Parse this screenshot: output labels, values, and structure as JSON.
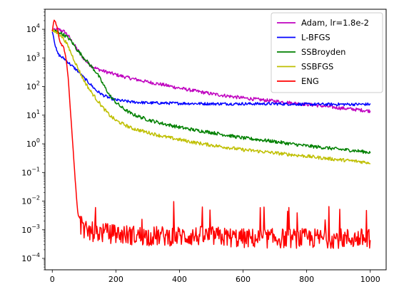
{
  "chart_data": {
    "type": "line",
    "title": "",
    "xlabel": "",
    "ylabel": "",
    "xlim": [
      -23,
      1050
    ],
    "ylim": [
      4e-05,
      50000
    ],
    "yscale": "log",
    "grid": false,
    "legend_position": "top-right",
    "x_ticks": [
      0,
      200,
      400,
      600,
      800,
      1000
    ],
    "x_tick_labels": [
      "0",
      "200",
      "400",
      "600",
      "800",
      "1000"
    ],
    "y_ticks": [
      0.0001,
      0.001,
      0.01,
      0.1,
      1,
      10,
      100,
      1000,
      10000
    ],
    "y_tick_labels": [
      {
        "base": "10",
        "exp": "−4"
      },
      {
        "base": "10",
        "exp": "−3"
      },
      {
        "base": "10",
        "exp": "−2"
      },
      {
        "base": "10",
        "exp": "−1"
      },
      {
        "base": "10",
        "exp": "0"
      },
      {
        "base": "10",
        "exp": "1"
      },
      {
        "base": "10",
        "exp": "2"
      },
      {
        "base": "10",
        "exp": "3"
      },
      {
        "base": "10",
        "exp": "4"
      }
    ],
    "series": [
      {
        "name": "Adam, lr=1.8e-2",
        "color": "#bf00bf",
        "x": [
          0,
          10,
          20,
          30,
          40,
          50,
          60,
          80,
          100,
          120,
          140,
          160,
          200,
          250,
          300,
          350,
          400,
          450,
          500,
          550,
          600,
          650,
          700,
          750,
          800,
          850,
          900,
          950,
          1000
        ],
        "y": [
          9000,
          9500,
          10000,
          9000,
          8000,
          6000,
          4000,
          1900,
          900,
          550,
          420,
          350,
          260,
          190,
          145,
          115,
          88,
          70,
          56,
          47,
          40,
          35,
          31,
          27,
          24,
          21,
          18,
          16,
          14
        ]
      },
      {
        "name": "L-BFGS",
        "color": "#0000ff",
        "x": [
          0,
          5,
          10,
          15,
          20,
          30,
          40,
          50,
          60,
          80,
          100,
          120,
          140,
          160,
          180,
          200,
          250,
          300,
          400,
          500,
          600,
          700,
          800,
          900,
          1000
        ],
        "y": [
          9000,
          5000,
          2500,
          1600,
          1300,
          1050,
          900,
          700,
          550,
          350,
          200,
          120,
          70,
          50,
          40,
          34,
          29,
          27,
          26,
          25,
          25,
          25,
          24,
          24,
          24
        ]
      },
      {
        "name": "SSBroyden",
        "color": "#008000",
        "x": [
          0,
          10,
          20,
          30,
          40,
          50,
          60,
          80,
          100,
          120,
          140,
          160,
          180,
          200,
          220,
          250,
          300,
          350,
          400,
          450,
          500,
          550,
          600,
          650,
          700,
          750,
          800,
          850,
          900,
          950,
          1000
        ],
        "y": [
          9000,
          8500,
          8000,
          7000,
          6000,
          5000,
          3800,
          1800,
          1000,
          550,
          300,
          120,
          50,
          28,
          18,
          11,
          7,
          5,
          3.8,
          3,
          2.5,
          2,
          1.6,
          1.4,
          1.2,
          1.0,
          0.85,
          0.75,
          0.65,
          0.58,
          0.5
        ]
      },
      {
        "name": "SSBFGS",
        "color": "#bfbf00",
        "x": [
          0,
          10,
          20,
          30,
          40,
          50,
          60,
          70,
          80,
          100,
          120,
          140,
          160,
          180,
          200,
          250,
          300,
          350,
          400,
          450,
          500,
          550,
          600,
          650,
          700,
          750,
          800,
          850,
          900,
          950,
          1000
        ],
        "y": [
          9000,
          8000,
          7000,
          5500,
          4000,
          2500,
          1400,
          800,
          450,
          160,
          70,
          35,
          18,
          10,
          6.5,
          3.5,
          2.5,
          1.8,
          1.4,
          1.1,
          0.9,
          0.75,
          0.62,
          0.55,
          0.48,
          0.42,
          0.37,
          0.32,
          0.28,
          0.25,
          0.22
        ]
      },
      {
        "name": "ENG",
        "color": "#ff0000",
        "x": [
          0,
          3,
          6,
          10,
          15,
          20,
          25,
          30,
          35,
          40,
          45,
          50,
          55,
          60,
          65,
          70,
          75,
          80,
          90,
          100,
          150,
          200,
          300,
          400,
          500,
          600,
          700,
          800,
          900,
          1000
        ],
        "y": [
          8000,
          16000,
          22000,
          18000,
          12000,
          6000,
          3500,
          2800,
          2500,
          1500,
          700,
          200,
          30,
          5,
          0.8,
          0.12,
          0.02,
          0.004,
          0.0015,
          0.0009,
          0.0008,
          0.0007,
          0.0006,
          0.0006,
          0.0006,
          0.0005,
          0.0005,
          0.0005,
          0.0005,
          0.0005
        ]
      }
    ]
  }
}
